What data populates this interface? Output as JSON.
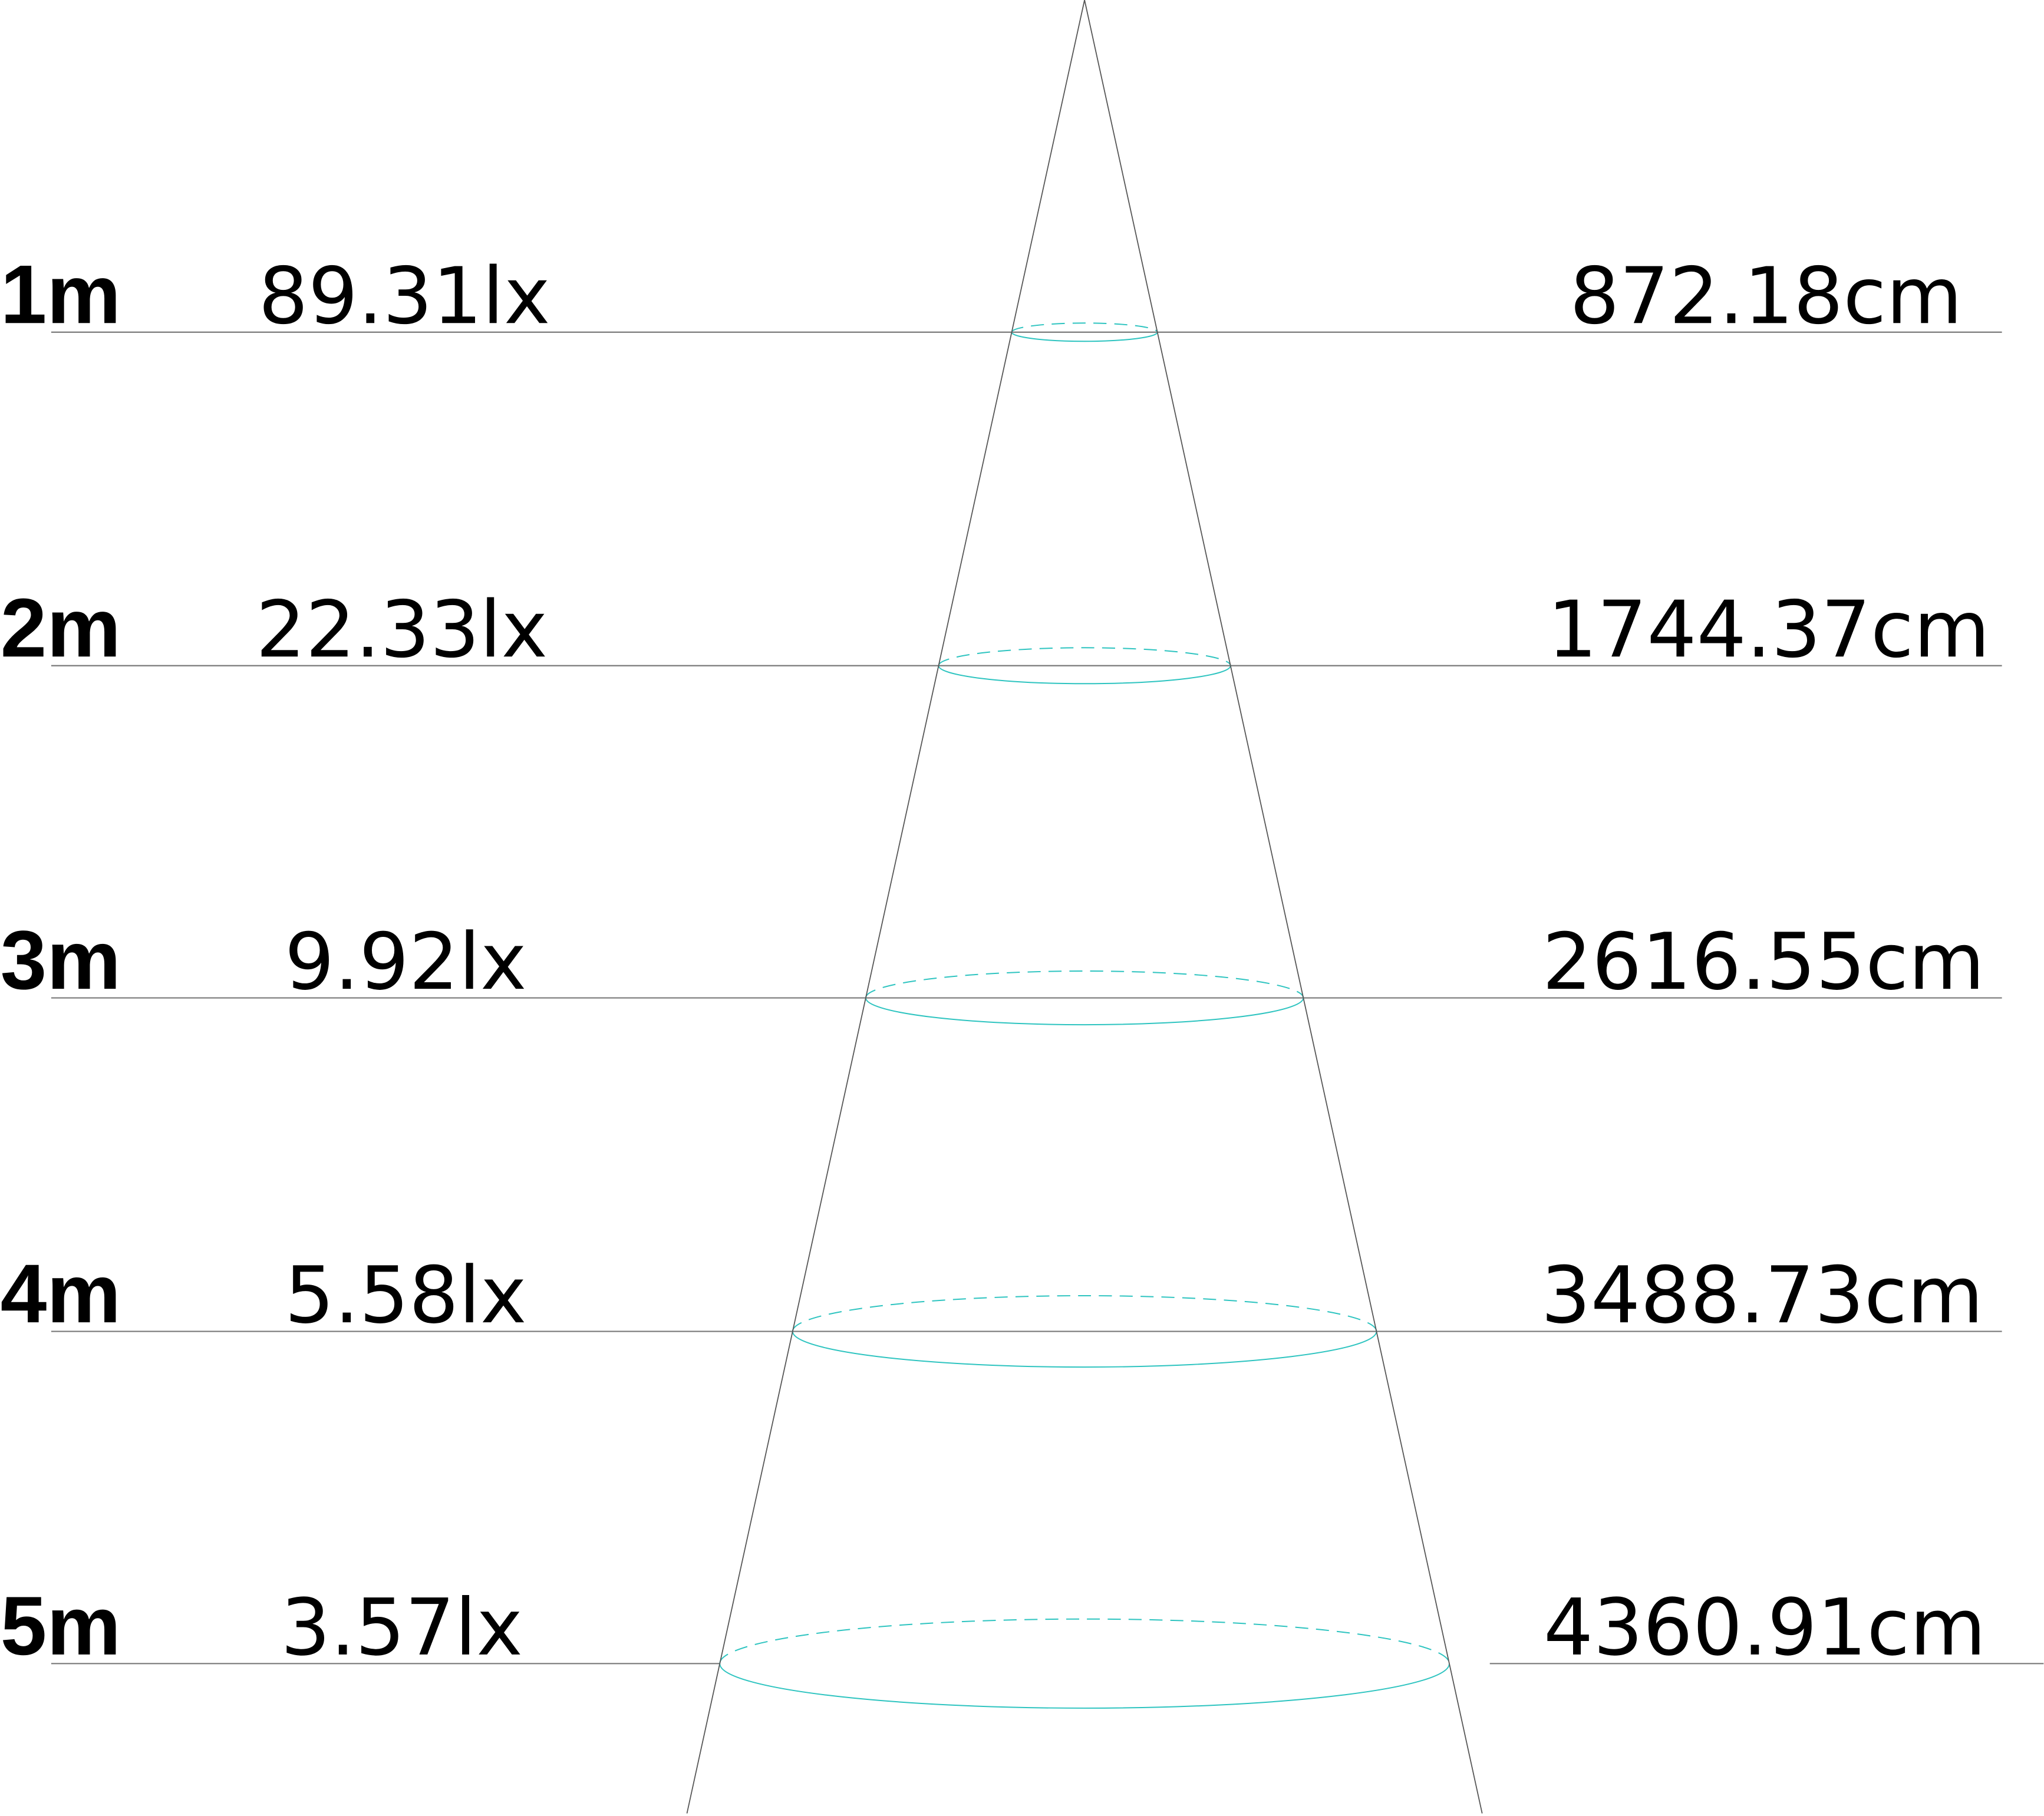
{
  "colors": {
    "guide": "#7a7a7a",
    "cone": "#555555",
    "ellipse": "#2ec4c0"
  },
  "rows": [
    {
      "distance": "1m",
      "illuminance": "89.31lx",
      "diameter": "872.18cm"
    },
    {
      "distance": "2m",
      "illuminance": "22.33lx",
      "diameter": "1744.37cm"
    },
    {
      "distance": "3m",
      "illuminance": "9.92lx",
      "diameter": "2616.55cm"
    },
    {
      "distance": "4m",
      "illuminance": "5.58lx",
      "diameter": "3488.73cm"
    },
    {
      "distance": "5m",
      "illuminance": "3.57lx",
      "diameter": "4360.91cm"
    }
  ]
}
